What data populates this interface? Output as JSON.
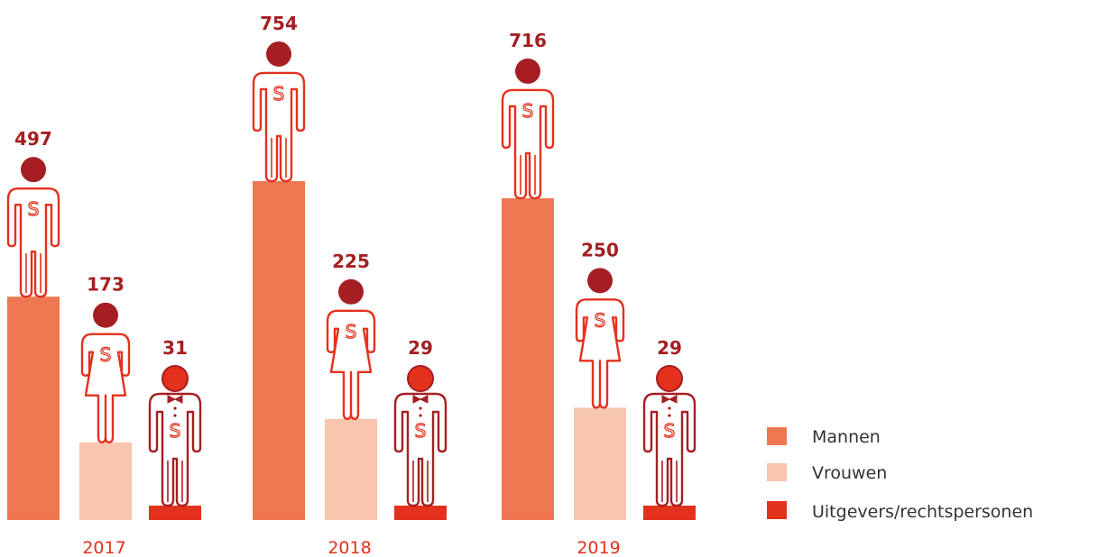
{
  "colors": {
    "mannen": "#EE7752",
    "vrouwen": "#F8C6AF",
    "uitgevers": "#E3311D",
    "figure_line": "#E3311D",
    "figure_line_dark": "#A51F22",
    "head_dark": "#A51F22",
    "head_red": "#E3311D",
    "value_text": "#A51F22",
    "year_text": "#E3311D",
    "legend_text": "#333333"
  },
  "chart_data": {
    "type": "bar",
    "categories": [
      "2017",
      "2018",
      "2019"
    ],
    "series": [
      {
        "name": "Mannen",
        "values": [
          497,
          754,
          716
        ],
        "icon": "man-icon"
      },
      {
        "name": "Vrouwen",
        "values": [
          173,
          225,
          250
        ],
        "icon": "woman-icon"
      },
      {
        "name": "Uitgevers/rechtspersonen",
        "values": [
          31,
          29,
          29
        ],
        "icon": "bowtie-person-icon"
      }
    ],
    "legend": {
      "position": "right",
      "entries": [
        "Mannen",
        "Vrouwen",
        "Uitgevers/rechtspersonen"
      ]
    },
    "grid": false,
    "axes_visible": false
  }
}
